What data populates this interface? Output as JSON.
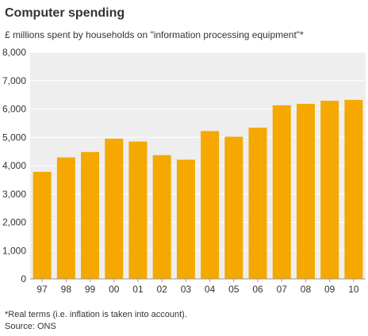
{
  "chart_data": {
    "type": "bar",
    "title": "Computer spending",
    "subtitle": "£ millions spent by households on \"information processing equipment\"*",
    "categories": [
      "97",
      "98",
      "99",
      "00",
      "01",
      "02",
      "03",
      "04",
      "05",
      "06",
      "07",
      "08",
      "09",
      "10"
    ],
    "values": [
      3780,
      4290,
      4480,
      4950,
      4850,
      4370,
      4210,
      5220,
      5020,
      5340,
      6130,
      6180,
      6290,
      6320
    ],
    "ylim": [
      0,
      8000
    ],
    "yticks": [
      "0",
      "1,000",
      "2,000",
      "3,000",
      "4,000",
      "5,000",
      "6,000",
      "7,000",
      "8,000"
    ],
    "xlabel": "",
    "ylabel": "",
    "grid": true,
    "legend": "none",
    "colors": {
      "bar": "#f5a800",
      "plot_background": "#eeeeee",
      "gridline": "#ffffff"
    }
  },
  "footnote": "*Real terms (i.e. inflation is taken into account).",
  "source": "Source: ONS"
}
